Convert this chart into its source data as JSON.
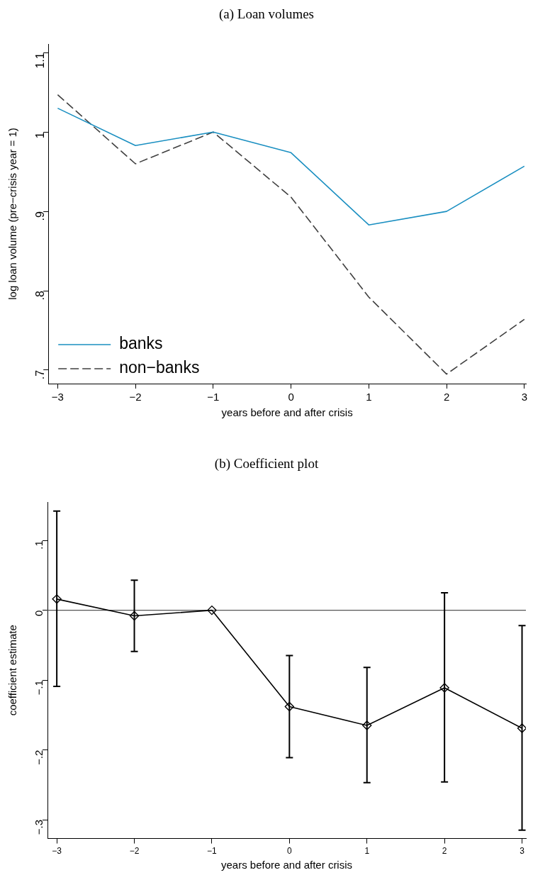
{
  "chart_data": [
    {
      "type": "line",
      "title": "(a) Loan volumes",
      "xlabel": "years before and after crisis",
      "ylabel": "log loan volume (pre−crisis year = 1)",
      "x": [
        -3,
        -2,
        -1,
        0,
        1,
        2,
        3
      ],
      "series": [
        {
          "name": "banks",
          "color": "#1a8fc1",
          "values": [
            1.03,
            0.983,
            1.0,
            0.974,
            0.883,
            0.9,
            0.957
          ],
          "line_style": "solid"
        },
        {
          "name": "non−banks",
          "color": "#404040",
          "values": [
            1.047,
            0.96,
            1.0,
            0.918,
            0.792,
            0.695,
            0.764
          ],
          "line_style": "dashed"
        }
      ],
      "xlim": [
        -3.12,
        3.02
      ],
      "ylim": [
        0.683,
        1.111
      ],
      "xticks": [
        {
          "value": -3,
          "label": "−3"
        },
        {
          "value": -2,
          "label": "−2"
        },
        {
          "value": -1,
          "label": "−1"
        },
        0,
        1,
        2,
        3
      ],
      "yticks": [
        {
          "value": 0.7,
          "label": ".7"
        },
        {
          "value": 0.8,
          "label": ".8"
        },
        {
          "value": 0.9,
          "label": ".9"
        },
        1,
        1.1
      ],
      "grid": false,
      "legend": "bottom left",
      "marker": "none"
    },
    {
      "type": "line",
      "title": "(b) Coefficient plot",
      "xlabel": "years before and after crisis",
      "ylabel": "coefficient estimate",
      "x": [
        -3,
        -2,
        -1,
        0,
        1,
        2,
        3
      ],
      "series": [
        {
          "color": "#000000",
          "values": [
            0.016,
            -0.008,
            0,
            -0.138,
            -0.165,
            -0.111,
            -0.169
          ],
          "errors": [
            [
              -0.109,
              0.142
            ],
            [
              -0.059,
              0.043
            ],
            null,
            [
              -0.211,
              -0.065
            ],
            [
              -0.247,
              -0.082
            ],
            [
              -0.246,
              0.025
            ],
            [
              -0.315,
              -0.022
            ]
          ]
        }
      ],
      "xlim": [
        -3.12,
        3.05
      ],
      "ylim": [
        -0.327,
        0.155
      ],
      "xticks": [
        {
          "value": -3,
          "label": "−3"
        },
        {
          "value": -2,
          "label": "−2"
        },
        {
          "value": -1,
          "label": "−1"
        },
        0,
        1,
        2,
        3
      ],
      "yticks": [
        {
          "value": -0.3,
          "label": "−.3"
        },
        {
          "value": -0.2,
          "label": "−.2"
        },
        {
          "value": -0.1,
          "label": "−.1"
        },
        0,
        {
          "value": 0.1,
          "label": ".1"
        }
      ],
      "ref_lines": [
        {
          "axis": "y",
          "value": 0,
          "color": "#555555"
        }
      ],
      "grid": false,
      "marker": "diamond"
    }
  ]
}
